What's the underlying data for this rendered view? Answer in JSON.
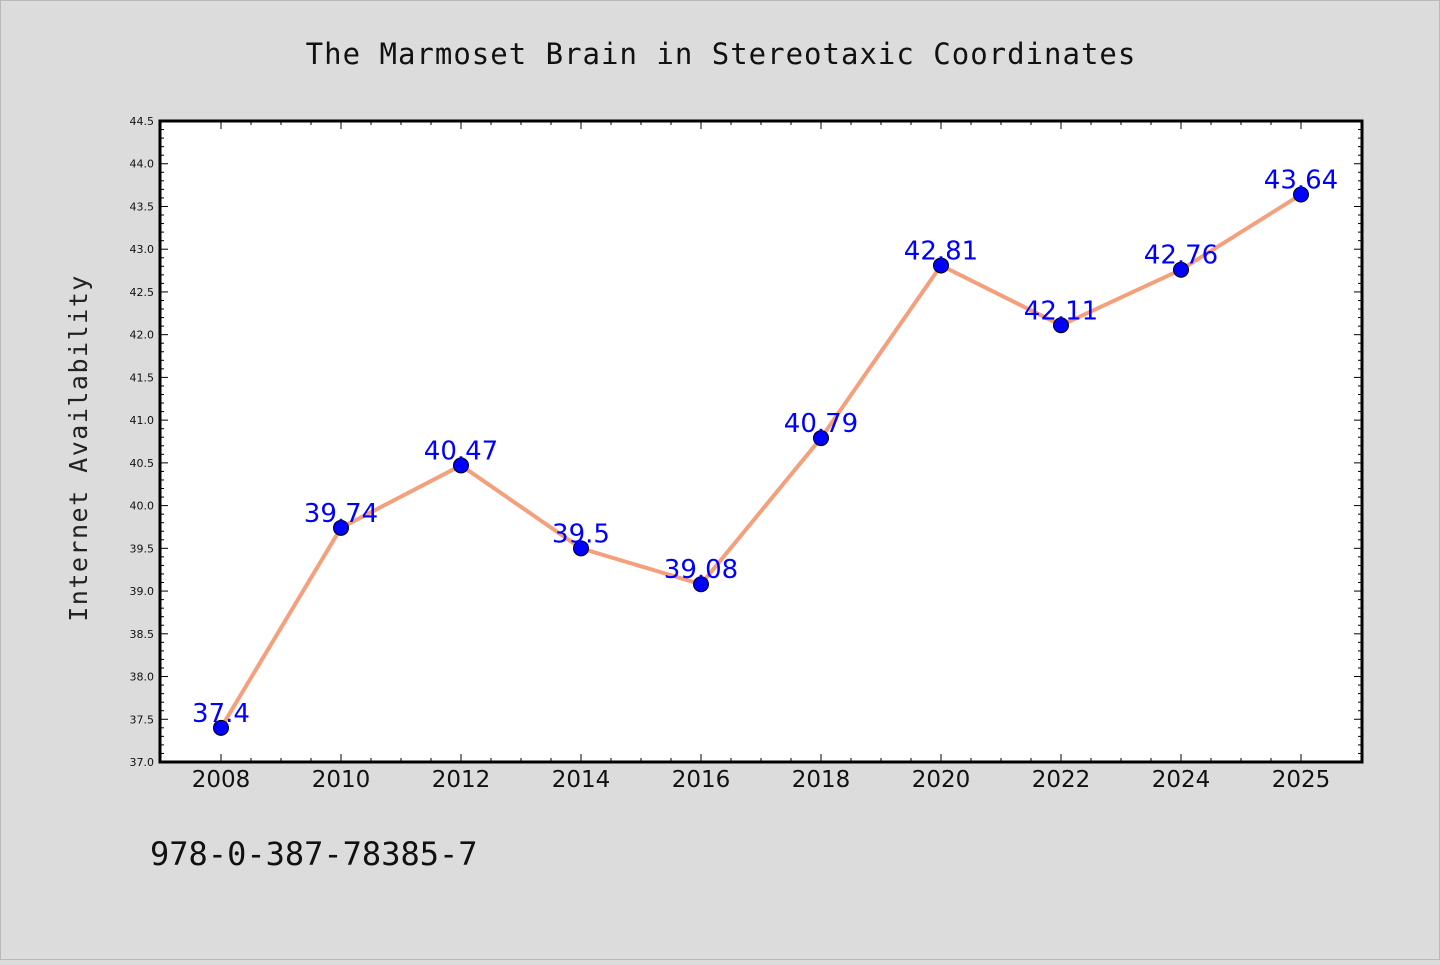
{
  "chart_data": {
    "type": "line",
    "title": "The Marmoset Brain in Stereotaxic Coordinates",
    "xlabel": "",
    "ylabel": "Internet Availability",
    "categories": [
      "2008",
      "2010",
      "2012",
      "2014",
      "2016",
      "2018",
      "2020",
      "2022",
      "2024",
      "2025"
    ],
    "series": [
      {
        "values": [
          37.4,
          39.74,
          40.47,
          39.5,
          39.08,
          40.79,
          42.81,
          42.11,
          42.76,
          43.64
        ],
        "labels": [
          "37.4",
          "39.74",
          "40.47",
          "39.5",
          "39.08",
          "40.79",
          "42.81",
          "42.11",
          "42.76",
          "43.64"
        ],
        "line_color": "#f4a07c",
        "marker_color": "#0000ff"
      }
    ],
    "ylim": [
      37.0,
      44.5
    ],
    "yticks": [
      "37.0",
      "37.5",
      "38.0",
      "38.5",
      "39.0",
      "39.5",
      "40.0",
      "40.5",
      "41.0",
      "41.5",
      "42.0",
      "42.5",
      "43.0",
      "43.5",
      "44.0",
      "44.5"
    ],
    "grid": false,
    "legend": "none"
  },
  "footer": {
    "isbn": "978-0-387-78385-7"
  },
  "colors": {
    "background": "#dcdcdc",
    "plot_background": "#ffffff",
    "line": "#f4a07c",
    "marker": "#0000ff",
    "data_label": "#0000ff"
  }
}
